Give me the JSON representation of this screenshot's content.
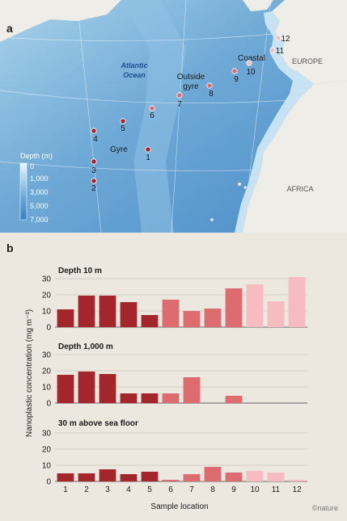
{
  "panel_a": {
    "label": "a",
    "ocean_label_line1": "Atlantic",
    "ocean_label_line2": "Ocean",
    "region_outside_line1": "Outside",
    "region_outside_line2": "gyre",
    "region_gyre": "Gyre",
    "region_coastal": "Coastal",
    "continent_europe": "EUROPE",
    "continent_africa": "AFRICA",
    "depth_legend_title": "Depth (m)",
    "depth_legend_ticks": [
      "0",
      "1,000",
      "3,000",
      "5,000",
      "7,000"
    ],
    "colors": {
      "gyre": "#a3262d",
      "outside_gyre": "#dc6c6f",
      "coastal": "#f6bcc0",
      "land": "#efede8",
      "shallow": "#cfe6f4",
      "deep": "#3a7fbf"
    },
    "sites": [
      {
        "id": "1",
        "group": "gyre"
      },
      {
        "id": "2",
        "group": "gyre"
      },
      {
        "id": "3",
        "group": "gyre"
      },
      {
        "id": "4",
        "group": "gyre"
      },
      {
        "id": "5",
        "group": "gyre"
      },
      {
        "id": "6",
        "group": "outside_gyre"
      },
      {
        "id": "7",
        "group": "outside_gyre"
      },
      {
        "id": "8",
        "group": "outside_gyre"
      },
      {
        "id": "9",
        "group": "outside_gyre"
      },
      {
        "id": "10",
        "group": "coastal"
      },
      {
        "id": "11",
        "group": "coastal"
      },
      {
        "id": "12",
        "group": "coastal"
      }
    ]
  },
  "panel_b": {
    "label": "b",
    "credit": "©nature"
  },
  "chart_data": {
    "type": "bar",
    "categories": [
      "1",
      "2",
      "3",
      "4",
      "5",
      "6",
      "7",
      "8",
      "9",
      "10",
      "11",
      "12"
    ],
    "xlabel": "Sample location",
    "ylabel": "Nanoplastic concentration (mg m⁻³)",
    "ylim": [
      0,
      30
    ],
    "yticks": [
      "0",
      "10",
      "20",
      "30"
    ],
    "grid": true,
    "bar_colors": [
      "#a3262d",
      "#a3262d",
      "#a3262d",
      "#a3262d",
      "#a3262d",
      "#dc6c6f",
      "#dc6c6f",
      "#dc6c6f",
      "#dc6c6f",
      "#f6bcc0",
      "#f6bcc0",
      "#f6bcc0"
    ],
    "series": [
      {
        "name": "Depth 10 m",
        "values": [
          11,
          19.5,
          19.5,
          15.5,
          7.5,
          17,
          10,
          11.5,
          24,
          26.5,
          16,
          31
        ]
      },
      {
        "name": "Depth 1,000 m",
        "values": [
          17.5,
          19.5,
          18,
          6,
          6,
          6,
          16,
          null,
          4.5,
          null,
          null,
          null
        ]
      },
      {
        "name": "30 m above sea floor",
        "values": [
          5,
          5,
          7.5,
          4.5,
          6,
          1,
          4.5,
          9,
          5.5,
          6.5,
          5.5,
          1
        ]
      }
    ]
  }
}
